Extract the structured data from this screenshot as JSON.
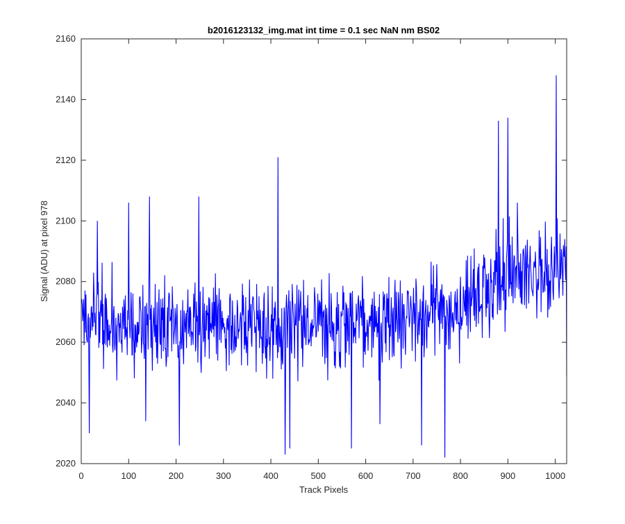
{
  "chart_data": {
    "type": "line",
    "title": "b2016123132_img.mat int time = 0.1 sec  NaN nm BS02",
    "xlabel": "Track Pixels",
    "ylabel": "Signal (ADU) at pixel 978",
    "xlim": [
      0,
      1024
    ],
    "ylim": [
      2020,
      2160
    ],
    "xticks": [
      0,
      100,
      200,
      300,
      400,
      500,
      600,
      700,
      800,
      900,
      1000
    ],
    "yticks": [
      2020,
      2040,
      2060,
      2080,
      2100,
      2120,
      2140,
      2160
    ],
    "grid": false,
    "legend": "none",
    "line_color": "#0000ff",
    "series": [
      {
        "x_start": 1,
        "x_step": 1,
        "trend": [
          [
            0,
            2066
          ],
          [
            300,
            2066
          ],
          [
            600,
            2065
          ],
          [
            800,
            2072
          ],
          [
            900,
            2082
          ],
          [
            1024,
            2084
          ]
        ],
        "noise_amplitude": 22,
        "noise_seed": 978,
        "peaks": [
          [
            17,
            2030
          ],
          [
            34,
            2100
          ],
          [
            100,
            2106
          ],
          [
            136,
            2034
          ],
          [
            144,
            2108
          ],
          [
            207,
            2026
          ],
          [
            248,
            2108
          ],
          [
            415,
            2121
          ],
          [
            430,
            2023
          ],
          [
            440,
            2025
          ],
          [
            524,
            2063
          ],
          [
            570,
            2025
          ],
          [
            630,
            2033
          ],
          [
            718,
            2026
          ],
          [
            767,
            2022
          ],
          [
            880,
            2133
          ],
          [
            900,
            2134
          ],
          [
            920,
            2106
          ],
          [
            1002,
            2148
          ],
          [
            1024,
            2049
          ]
        ]
      }
    ]
  }
}
